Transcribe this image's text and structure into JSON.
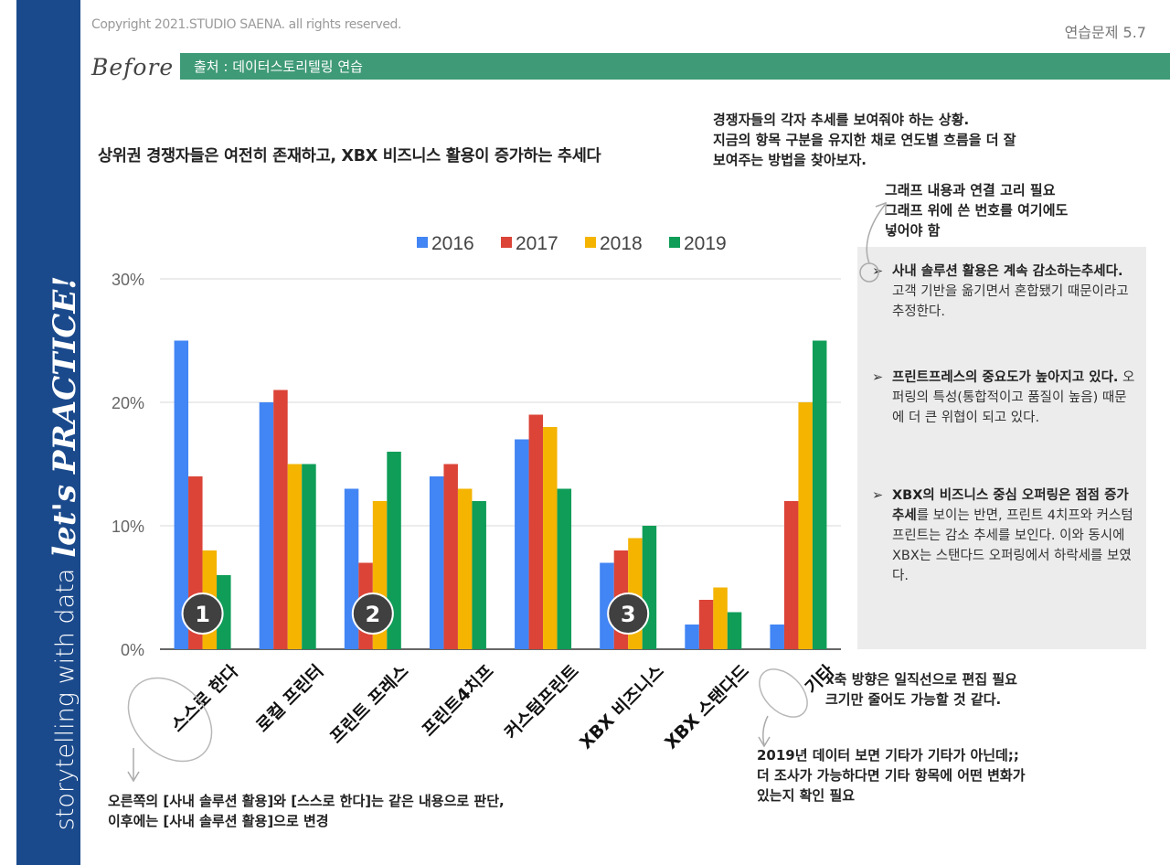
{
  "header": {
    "copyright": "Copyright 2021.STUDIO SAENA. all rights reserved.",
    "exercise": "연습문제 5.7",
    "before": "Before",
    "source": "출처 : 데이터스토리텔링 연습"
  },
  "sidebar": {
    "brand_a": "storytelling with data",
    "brand_b": "let's PRACTICE!"
  },
  "headline": "상위권 경쟁자들은 여전히 존재하고, XBX 비즈니스 활용이 증가하는 추세다",
  "notes": {
    "top": [
      "경쟁자들의 각자 추세를 보여줘야 하는 상황.",
      "지금의 항목 구분을 유지한 채로 연도별 흐름을 더 잘",
      "보여주는 방법을 찾아보자."
    ],
    "link": [
      "그래프 내용과 연결 고리 필요",
      "그래프 위에 쓴 번호를 여기에도",
      "넣어야 함"
    ],
    "axis": [
      "x축 방향은 일직선으로 편집 필요",
      "크기만 줄어도 가능할 것 같다."
    ],
    "other": [
      "2019년 데이터 보면 기타가 기타가 아닌데;;",
      "더 조사가 가능하다면 기타 항목에 어떤 변화가",
      "있는지 확인 필요"
    ],
    "bottom": [
      "오른쪽의 [사내 솔루션 활용]와 [스스로 한다]는 같은 내용으로 판단,",
      "이후에는 [사내 솔루션 활용]으로 변경"
    ]
  },
  "bullets": [
    {
      "bold": "사내 솔루션 활용은 계속 감소하는추세다.",
      "rest": " 고객 기반을 옮기면서 혼합됐기 때문이라고 추정한다."
    },
    {
      "bold": "프린트프레스의 중요도가 높아지고 있다.",
      "rest": " 오퍼링의 특성(통합적이고 품질이 높음) 때문에 더 큰 위협이 되고 있다."
    },
    {
      "bold": "XBX의 비즈니스 중심 오퍼링은 점점 증가 추세",
      "rest": "를 보이는 반면, 프린트 4치프와 커스텀 프린트는 감소 추세를 보인다. 이와 동시에 XBX는 스탠다드 오퍼링에서 하락세를 보였다."
    }
  ],
  "colors": {
    "sidebar": "#1b4a8c",
    "source_bar": "#3f9a77",
    "panel": "#ececec",
    "marker": "#404040"
  },
  "chart_data": {
    "type": "bar",
    "categories": [
      "스스로 한다",
      "로컬 프린터",
      "프린트 프레스",
      "프린트4치프",
      "커스텀프린트",
      "XBX 비즈니스",
      "XBX 스탠다드",
      "기타"
    ],
    "series": [
      {
        "name": "2016",
        "color": "#4285f4",
        "values": [
          25,
          20,
          13,
          14,
          17,
          7,
          2,
          2
        ]
      },
      {
        "name": "2017",
        "color": "#db4437",
        "values": [
          14,
          21,
          7,
          15,
          19,
          8,
          4,
          12
        ]
      },
      {
        "name": "2018",
        "color": "#f4b400",
        "values": [
          8,
          15,
          12,
          13,
          18,
          9,
          5,
          20
        ]
      },
      {
        "name": "2019",
        "color": "#0f9d58",
        "values": [
          6,
          15,
          16,
          12,
          13,
          10,
          3,
          25
        ]
      }
    ],
    "yticks": [
      "0%",
      "10%",
      "20%",
      "30%"
    ],
    "ylim": [
      0,
      30
    ],
    "legend": "top",
    "grid": true,
    "markers": [
      {
        "label": "1",
        "category": 0
      },
      {
        "label": "2",
        "category": 2
      },
      {
        "label": "3",
        "category": 5
      }
    ]
  }
}
